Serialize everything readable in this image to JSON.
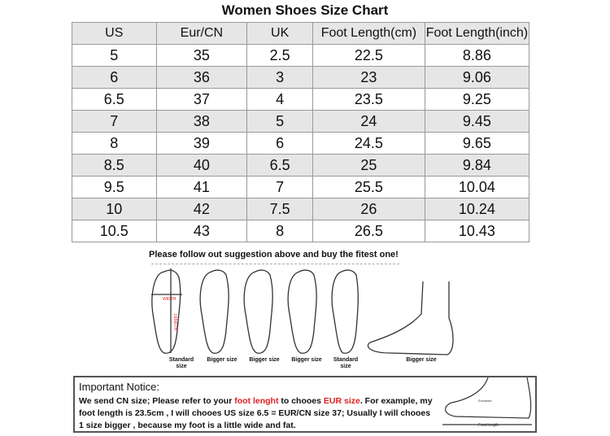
{
  "title": "Women Shoes Size Chart",
  "table": {
    "headers": [
      "US",
      "Eur/CN",
      "UK",
      "Foot Length(cm)",
      "Foot Length(inch)"
    ],
    "rows": [
      [
        "5",
        "35",
        "2.5",
        "22.5",
        "8.86"
      ],
      [
        "6",
        "36",
        "3",
        "23",
        "9.06"
      ],
      [
        "6.5",
        "37",
        "4",
        "23.5",
        "9.25"
      ],
      [
        "7",
        "38",
        "5",
        "24",
        "9.45"
      ],
      [
        "8",
        "39",
        "6",
        "24.5",
        "9.65"
      ],
      [
        "8.5",
        "40",
        "6.5",
        "25",
        "9.84"
      ],
      [
        "9.5",
        "41",
        "7",
        "25.5",
        "10.04"
      ],
      [
        "10",
        "42",
        "7.5",
        "26",
        "10.24"
      ],
      [
        "10.5",
        "43",
        "8",
        "26.5",
        "10.43"
      ]
    ]
  },
  "suggestion": "Please follow out suggestion above and buy the fitest one!",
  "feet": {
    "labels": [
      "WIDTH",
      "LENGTH"
    ],
    "captions": [
      "Standard size",
      "Bigger size",
      "Bigger size",
      "Bigger size",
      "Standard size",
      "Bigger size"
    ]
  },
  "notice": {
    "title": "Important Notice:",
    "line_a": "We send CN size; Please refer to your ",
    "red_a": "foot lenght",
    "line_b": " to chooes ",
    "red_b": "EUR size",
    "line_c": ". For example, my foot length is 23.5cm , I will chooes US size 6.5 = EUR/CN size 37; Usually I will chooes 1 size bigger , because my foot is a little wide and fat.",
    "diagram_labels": [
      "Enclosed",
      "Foot length"
    ]
  },
  "colors": {
    "accent_red": "#e02020",
    "row_shade": "#e6e6e6"
  }
}
